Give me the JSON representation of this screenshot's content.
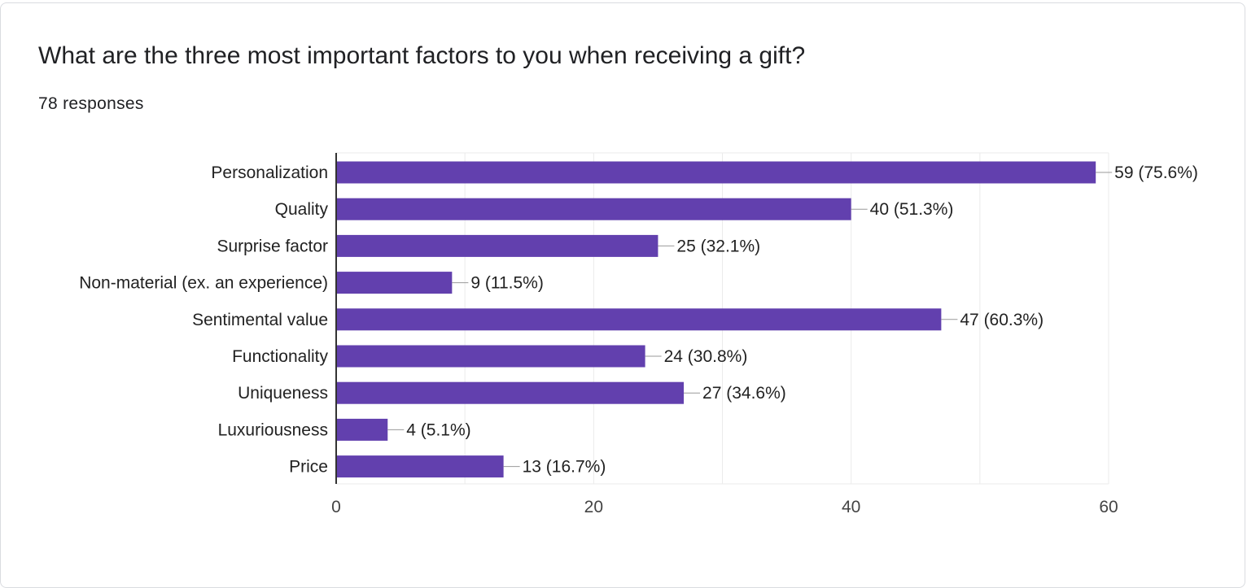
{
  "question": {
    "title": "What are the three most important factors to you when receiving a gift?",
    "responses": "78 responses"
  },
  "colors": {
    "bar": "#6240ae",
    "grid": "#ebebeb",
    "axis": "#333333",
    "leader": "#999999"
  },
  "chart_data": {
    "type": "bar",
    "orientation": "horizontal",
    "categories": [
      "Personalization",
      "Quality",
      "Surprise factor",
      "Non-material (ex. an experience)",
      "Sentimental value",
      "Functionality",
      "Uniqueness",
      "Luxuriousness",
      "Price"
    ],
    "values": [
      59,
      40,
      25,
      9,
      47,
      24,
      27,
      4,
      13
    ],
    "labels": [
      "59 (75.6%)",
      "40 (51.3%)",
      "25 (32.1%)",
      "9 (11.5%)",
      "47 (60.3%)",
      "24 (30.8%)",
      "27 (34.6%)",
      "4 (5.1%)",
      "13 (16.7%)"
    ],
    "xlim": [
      0,
      60
    ],
    "ticks": [
      0,
      20,
      40,
      60
    ],
    "grid": true,
    "legend": "none"
  }
}
